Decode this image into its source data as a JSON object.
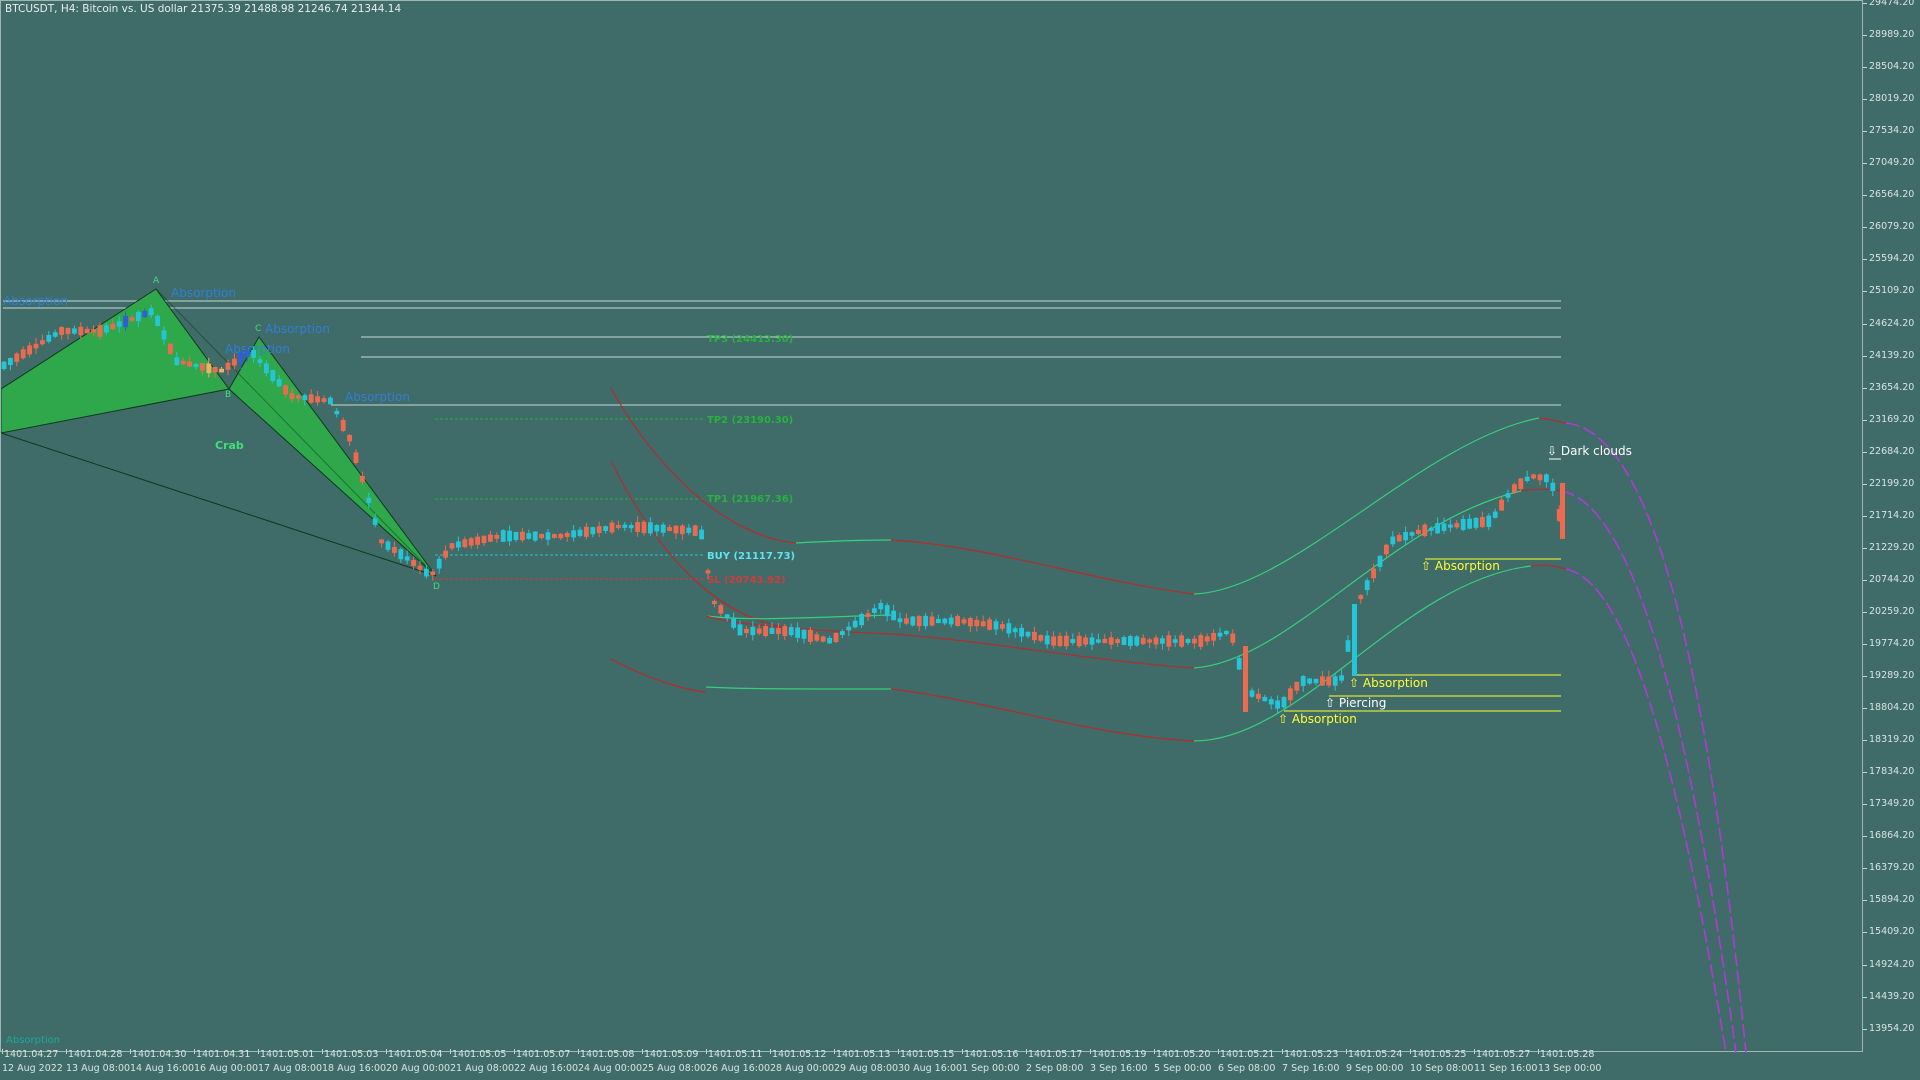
{
  "header": "BTCUSDT, H4:  Bitcoin vs. US dollar  21375.39 21488.98 21246.74 21344.14",
  "footer_note": "Absorption",
  "price_axis": [
    "29474.20",
    "28989.20",
    "28504.20",
    "28019.20",
    "27534.20",
    "27049.20",
    "26564.20",
    "26079.20",
    "25594.20",
    "25109.20",
    "24624.20",
    "24139.20",
    "23654.20",
    "23169.20",
    "22684.20",
    "22199.20",
    "21714.20",
    "21229.20",
    "20744.20",
    "20259.20",
    "19774.20",
    "19289.20",
    "18804.20",
    "18319.20",
    "17834.20",
    "17349.20",
    "16864.20",
    "16379.20",
    "15894.20",
    "15409.20",
    "14924.20",
    "14439.20",
    "13954.20"
  ],
  "time_axis_top": [
    "1401.04.27",
    "1401.04.28",
    "1401.04.30",
    "1401.04.31",
    "1401.05.01",
    "1401.05.03",
    "1401.05.04",
    "1401.05.05",
    "1401.05.07",
    "1401.05.08",
    "1401.05.09",
    "1401.05.11",
    "1401.05.12",
    "1401.05.13",
    "1401.05.15",
    "1401.05.16",
    "1401.05.17",
    "1401.05.19",
    "1401.05.20",
    "1401.05.21",
    "1401.05.23",
    "1401.05.24",
    "1401.05.25",
    "1401.05.27",
    "1401.05.28"
  ],
  "time_axis_bottom": [
    "12 Aug 2022",
    "13 Aug 08:00",
    "14 Aug 16:00",
    "16 Aug 00:00",
    "17 Aug 08:00",
    "18 Aug 16:00",
    "20 Aug 00:00",
    "21 Aug 08:00",
    "22 Aug 16:00",
    "24 Aug 00:00",
    "25 Aug 08:00",
    "26 Aug 16:00",
    "28 Aug 00:00",
    "29 Aug 08:00",
    "30 Aug 16:00",
    "1 Sep 00:00",
    "2 Sep 08:00",
    "3 Sep 16:00",
    "5 Sep 00:00",
    "6 Sep 08:00",
    "7 Sep 16:00",
    "9 Sep 00:00",
    "10 Sep 08:00",
    "11 Sep 16:00",
    "13 Sep 00:00"
  ],
  "pattern": {
    "name": "Crab",
    "points": [
      "A",
      "B",
      "C",
      "D"
    ],
    "absorption_labels": [
      "Absorption",
      "Absorption",
      "Absorption",
      "Absorption",
      "Absorption"
    ]
  },
  "trade": {
    "tp3": "TP3 (24413.30)",
    "tp2": "TP2 (23190.30)",
    "tp1": "TP1 (21967.36)",
    "buy": "BUY (21117.73)",
    "sl": "SL (20743.92)"
  },
  "signals": [
    {
      "label": "⇩ Dark clouds",
      "color": "#ffffff"
    },
    {
      "label": "⇧ Absorption",
      "color": "#ffff33"
    },
    {
      "label": "⇧ Absorption",
      "color": "#ffff33"
    },
    {
      "label": "⇧ Piercing",
      "color": "#ffffff"
    },
    {
      "label": "⇧ Absorption",
      "color": "#ffff33"
    }
  ],
  "colors": {
    "background": "#3f6b68",
    "bull": "#25c4d6",
    "bear": "#ee6a4f",
    "band_green": "#35d07f",
    "band_red": "#b42c2c",
    "forecast": "#b03ad6",
    "pattern_fill": "#2fa84c",
    "level_line": "#c8d8d6"
  }
}
